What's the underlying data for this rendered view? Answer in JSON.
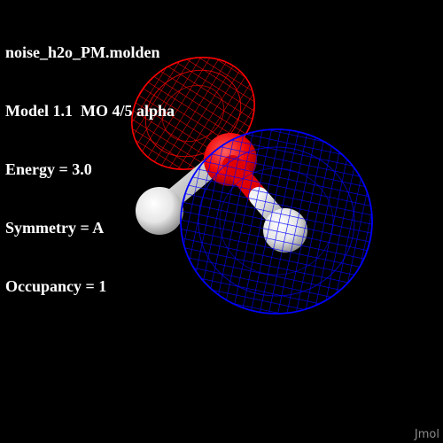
{
  "viewer": {
    "app_watermark": "Jmol",
    "background_color": "#000000"
  },
  "info": {
    "file_name": "noise_h2o_PM.molden",
    "model_line": "Model 1.1  MO 4/5 alpha",
    "energy_line": "Energy = 3.0",
    "symmetry_line": "Symmetry = A",
    "occupancy_line": "Occupancy = 1"
  },
  "molecule": {
    "name": "H2O",
    "atoms": [
      {
        "element": "O",
        "color": "#ff1a1a"
      },
      {
        "element": "H",
        "color": "#ffffff"
      },
      {
        "element": "H",
        "color": "#ffffff"
      }
    ]
  },
  "orbital": {
    "render_style": "mesh",
    "positive_lobe_color": "#0000ff",
    "negative_lobe_color": "#ff0000"
  }
}
